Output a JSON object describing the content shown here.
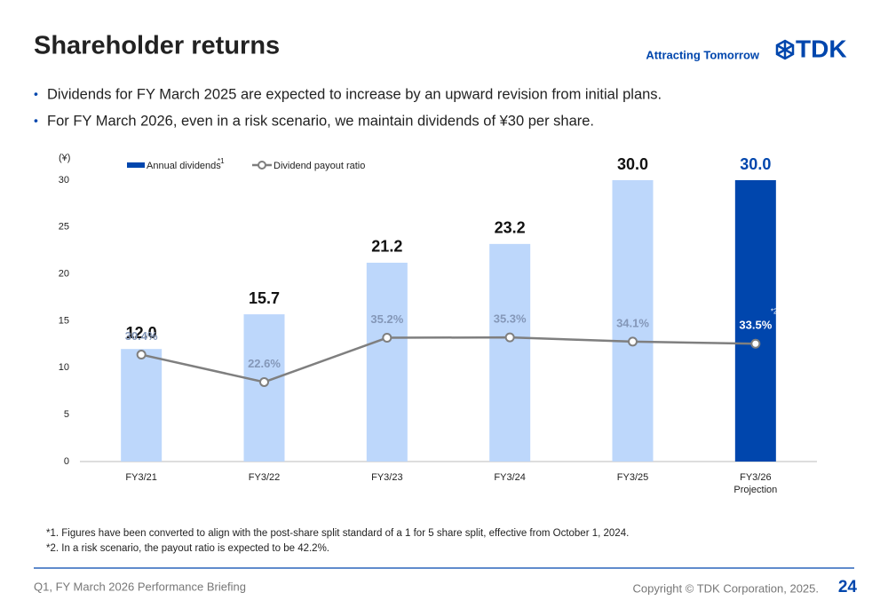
{
  "header": {
    "title": "Shareholder returns",
    "tagline": "Attracting Tomorrow",
    "logo": "TDK"
  },
  "bullets": [
    "Dividends for FY March 2025 are expected to increase by an upward revision from initial plans.",
    "For FY March 2026, even in a risk scenario, we maintain dividends of ¥30 per share."
  ],
  "chart_data": {
    "type": "bar",
    "y_unit": "(¥)",
    "categories": [
      "FY3/21",
      "FY3/22",
      "FY3/23",
      "FY3/24",
      "FY3/25",
      "FY3/26"
    ],
    "x_sublabel": "Projection",
    "ylim": [
      0,
      30
    ],
    "yticks": [
      0,
      5,
      10,
      15,
      20,
      25,
      30
    ],
    "y2lim": [
      0,
      80
    ],
    "legend_note": "*1",
    "annotation": "*2",
    "series": [
      {
        "name": "Annual dividends",
        "values": [
          12.0,
          15.7,
          21.2,
          23.2,
          30.0,
          30.0
        ],
        "value_labels": [
          "12.0",
          "15.7",
          "21.2",
          "23.2",
          "30.0",
          "30.0"
        ],
        "colors": [
          "#bdd7fb",
          "#bdd7fb",
          "#bdd7fb",
          "#bdd7fb",
          "#bdd7fb",
          "#0046ad"
        ],
        "label_colors": [
          "#111111",
          "#111111",
          "#111111",
          "#111111",
          "#111111",
          "#0046ad"
        ],
        "color": "#0046ad"
      },
      {
        "name": "Dividend payout ratio",
        "type": "line",
        "axis": "y2",
        "values": [
          30.4,
          22.6,
          35.2,
          35.3,
          34.1,
          33.5
        ],
        "value_labels": [
          "30.4%",
          "22.6%",
          "35.2%",
          "35.3%",
          "34.1%",
          "33.5%"
        ],
        "color": "#7f7f7f",
        "label_colors": [
          "#8497b8",
          "#8497b8",
          "#8497b8",
          "#8497b8",
          "#8497b8",
          "#ffffff"
        ]
      }
    ]
  },
  "footnotes": [
    "*1. Figures have been converted to align with the post-share split standard of a 1 for 5 share split, effective from October 1, 2024.",
    "*2. In a risk scenario, the payout ratio is expected to be 42.2%."
  ],
  "footer": {
    "left": "Q1, FY March 2026 Performance Briefing",
    "copyright": "Copyright © TDK Corporation, 2025.",
    "page": "24"
  }
}
